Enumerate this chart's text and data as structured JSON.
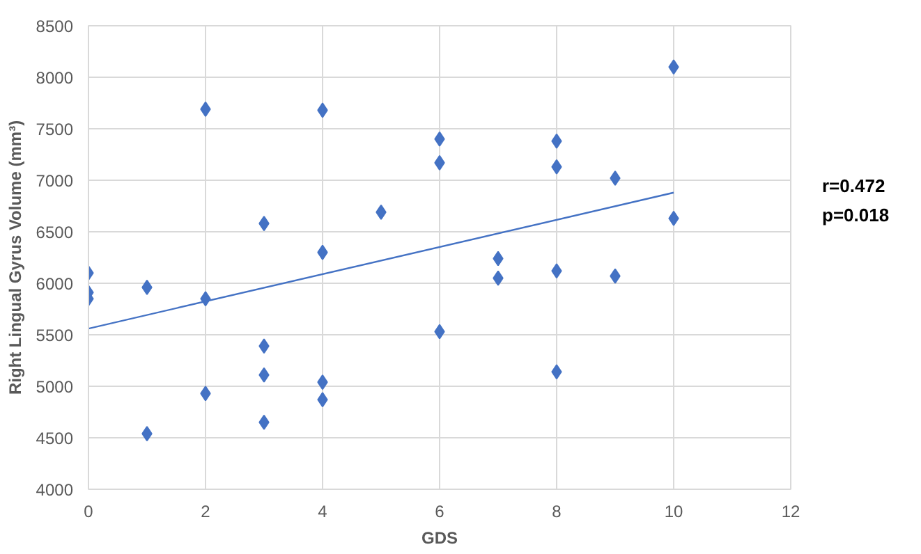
{
  "chart_data": {
    "type": "scatter",
    "xlabel": "GDS",
    "ylabel": "Right Lingual Gyrus Volume (mm³)",
    "xlim": [
      0,
      12
    ],
    "xticks": [
      0,
      2,
      4,
      6,
      8,
      10,
      12
    ],
    "ylim": [
      4000,
      8500
    ],
    "yticks": [
      4000,
      4500,
      5000,
      5500,
      6000,
      6500,
      7000,
      7500,
      8000,
      8500
    ],
    "grid": true,
    "marker": "diamond",
    "annotations": [
      "r=0.472",
      "p=0.018"
    ],
    "series": [
      {
        "color": "#4472c4",
        "x": [
          0,
          0,
          0,
          1,
          1,
          2,
          2,
          2,
          3,
          3,
          3,
          3,
          4,
          4,
          4,
          4,
          5,
          6,
          6,
          6,
          7,
          7,
          8,
          8,
          8,
          8,
          9,
          9,
          10,
          10
        ],
        "values": [
          6100,
          5910,
          5850,
          5960,
          4540,
          7690,
          5850,
          4930,
          6580,
          5390,
          5110,
          4650,
          7680,
          6300,
          5040,
          4870,
          6690,
          7400,
          7170,
          5530,
          6240,
          6050,
          7380,
          7130,
          6120,
          5140,
          7020,
          6070,
          8100,
          6630
        ]
      },
      {
        "type": "line",
        "marker": "none",
        "color": "#4472c4",
        "x": [
          0,
          10
        ],
        "values": [
          5560,
          6880
        ]
      }
    ]
  }
}
